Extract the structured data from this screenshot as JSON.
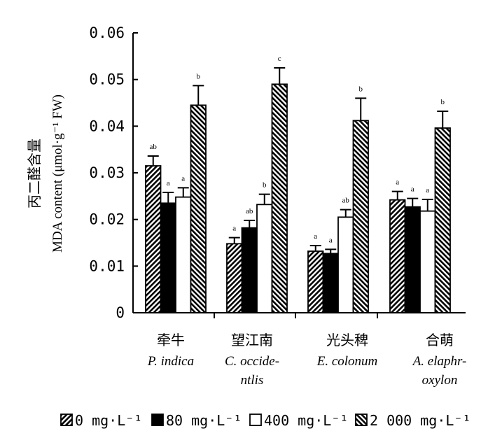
{
  "chart_data": {
    "type": "bar",
    "ylabel_cn": "丙二醛含量",
    "ylabel_en": "MDA content (μmol·g⁻¹ FW)",
    "ylim": [
      0,
      0.06
    ],
    "yticks": [
      "0",
      "0.01",
      "0.02",
      "0.03",
      "0.04",
      "0.05",
      "0.06"
    ],
    "grid": false,
    "legend_position": "bottom",
    "categories": [
      {
        "cn": "牵牛",
        "latin": [
          "P. indica"
        ]
      },
      {
        "cn": "望江南",
        "latin": [
          "C. occide-",
          "ntlis"
        ]
      },
      {
        "cn": "光头稗",
        "latin": [
          "E. colonum"
        ]
      },
      {
        "cn": "合萌",
        "latin": [
          "A. elaphr-",
          "oxylon"
        ]
      }
    ],
    "series": [
      {
        "name": "0 mg·L⁻¹",
        "pattern": "hatch-right",
        "values": [
          0.0315,
          0.0148,
          0.0132,
          0.0242
        ],
        "errors": [
          0.0021,
          0.0013,
          0.0012,
          0.0018
        ],
        "labels": [
          "ab",
          "a",
          "a",
          "a"
        ]
      },
      {
        "name": "80 mg·L⁻¹",
        "pattern": "solid",
        "values": [
          0.0235,
          0.0182,
          0.0127,
          0.0227
        ],
        "errors": [
          0.0023,
          0.0016,
          0.0009,
          0.0018
        ],
        "labels": [
          "a",
          "ab",
          "a",
          "a"
        ]
      },
      {
        "name": "400 mg·L⁻¹",
        "pattern": "white",
        "values": [
          0.0248,
          0.0232,
          0.0205,
          0.0218
        ],
        "errors": [
          0.002,
          0.0022,
          0.0016,
          0.0025
        ],
        "labels": [
          "a",
          "b",
          "ab",
          "a"
        ]
      },
      {
        "name": "2 000 mg·L⁻¹",
        "pattern": "hatch-left",
        "values": [
          0.0445,
          0.049,
          0.0412,
          0.0396
        ],
        "errors": [
          0.0042,
          0.0035,
          0.0048,
          0.0036
        ],
        "labels": [
          "b",
          "c",
          "b",
          "b"
        ]
      }
    ]
  }
}
